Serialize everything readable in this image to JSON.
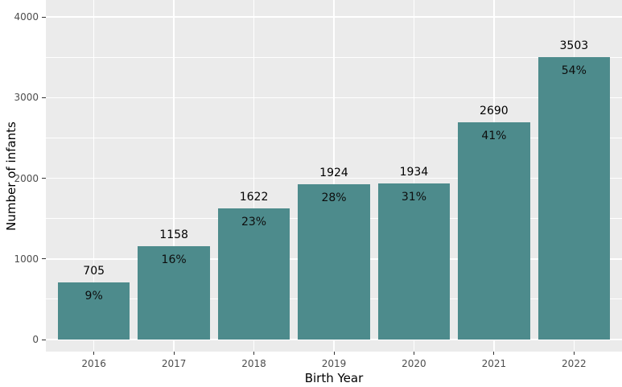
{
  "chart_data": {
    "type": "bar",
    "title": "",
    "xlabel": "Birth Year",
    "ylabel": "Number of infants",
    "categories": [
      "2016",
      "2017",
      "2018",
      "2019",
      "2020",
      "2021",
      "2022"
    ],
    "values": [
      705,
      1158,
      1622,
      1924,
      1934,
      2690,
      3503
    ],
    "value_labels": [
      "705",
      "1158",
      "1622",
      "1924",
      "1934",
      "2690",
      "3503"
    ],
    "percent_labels": [
      "9%",
      "16%",
      "23%",
      "28%",
      "31%",
      "41%",
      "54%"
    ],
    "ylim": [
      0,
      4200
    ],
    "yticks": [
      0,
      1000,
      2000,
      3000,
      4000
    ],
    "ytick_labels": [
      "0",
      "1000",
      "2000",
      "3000",
      "4000"
    ],
    "minor_yticks": [
      500,
      1500,
      2500,
      3500
    ],
    "grid": true,
    "legend": "none",
    "colors": {
      "bar_fill": "#4d8b8c",
      "panel_background": "#ebebeb",
      "gridline": "#ffffff",
      "tick_label": "#4d4d4d",
      "axis_title": "#000000",
      "tick_mark": "#333333",
      "label_text": "#000000"
    }
  }
}
